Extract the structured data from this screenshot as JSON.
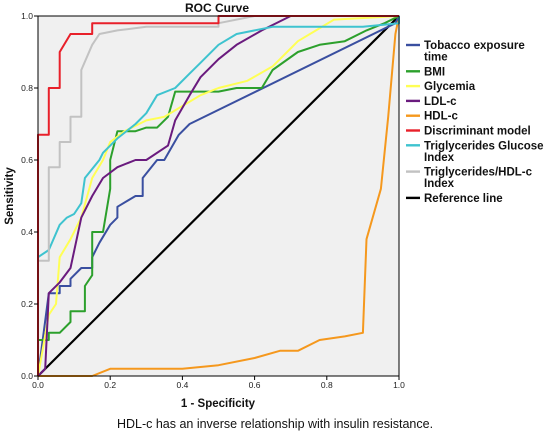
{
  "caption": "HDL-c has an inverse relationship with insulin resistance.",
  "chart_data": {
    "type": "line",
    "title": "ROC Curve",
    "xlabel": "1 - Specificity",
    "ylabel": "Sensitivity",
    "xlim": [
      0,
      1
    ],
    "ylim": [
      0,
      1
    ],
    "x_ticks": [
      "0.0",
      "0.2",
      "0.4",
      "0.6",
      "0.8",
      "1.0"
    ],
    "y_ticks": [
      "0.0",
      "0.2",
      "0.4",
      "0.6",
      "0.8",
      "1.0"
    ],
    "grid": false,
    "legend_position": "right",
    "background": "#f0f0f0",
    "series": [
      {
        "name": "Tobacco exposure time",
        "color": "#3a4fa0",
        "points": [
          [
            0,
            0
          ],
          [
            0.03,
            0.23
          ],
          [
            0.06,
            0.23
          ],
          [
            0.06,
            0.25
          ],
          [
            0.09,
            0.25
          ],
          [
            0.09,
            0.27
          ],
          [
            0.12,
            0.3
          ],
          [
            0.15,
            0.3
          ],
          [
            0.15,
            0.33
          ],
          [
            0.17,
            0.37
          ],
          [
            0.2,
            0.42
          ],
          [
            0.22,
            0.44
          ],
          [
            0.22,
            0.47
          ],
          [
            0.27,
            0.5
          ],
          [
            0.29,
            0.5
          ],
          [
            0.29,
            0.55
          ],
          [
            0.33,
            0.6
          ],
          [
            0.35,
            0.6
          ],
          [
            0.39,
            0.67
          ],
          [
            0.42,
            0.7
          ],
          [
            0.99,
            0.98
          ],
          [
            1,
            1
          ]
        ]
      },
      {
        "name": "BMI",
        "color": "#2ca02c",
        "points": [
          [
            0,
            0
          ],
          [
            0,
            0.1
          ],
          [
            0.03,
            0.1
          ],
          [
            0.03,
            0.12
          ],
          [
            0.06,
            0.12
          ],
          [
            0.09,
            0.15
          ],
          [
            0.09,
            0.18
          ],
          [
            0.13,
            0.18
          ],
          [
            0.13,
            0.25
          ],
          [
            0.15,
            0.28
          ],
          [
            0.15,
            0.4
          ],
          [
            0.18,
            0.4
          ],
          [
            0.2,
            0.52
          ],
          [
            0.2,
            0.6
          ],
          [
            0.22,
            0.68
          ],
          [
            0.27,
            0.68
          ],
          [
            0.3,
            0.69
          ],
          [
            0.33,
            0.69
          ],
          [
            0.36,
            0.72
          ],
          [
            0.38,
            0.79
          ],
          [
            0.44,
            0.79
          ],
          [
            0.5,
            0.79
          ],
          [
            0.55,
            0.8
          ],
          [
            0.62,
            0.8
          ],
          [
            0.65,
            0.85
          ],
          [
            0.72,
            0.9
          ],
          [
            0.78,
            0.92
          ],
          [
            0.85,
            0.93
          ],
          [
            0.91,
            0.96
          ],
          [
            0.96,
            0.98
          ],
          [
            1,
            1
          ]
        ]
      },
      {
        "name": "Glycemia",
        "color": "#ffff55",
        "points": [
          [
            0,
            0
          ],
          [
            0.03,
            0.17
          ],
          [
            0.05,
            0.2
          ],
          [
            0.06,
            0.33
          ],
          [
            0.09,
            0.38
          ],
          [
            0.12,
            0.44
          ],
          [
            0.15,
            0.55
          ],
          [
            0.18,
            0.6
          ],
          [
            0.2,
            0.65
          ],
          [
            0.24,
            0.68
          ],
          [
            0.3,
            0.71
          ],
          [
            0.35,
            0.72
          ],
          [
            0.4,
            0.75
          ],
          [
            0.45,
            0.78
          ],
          [
            0.5,
            0.8
          ],
          [
            0.58,
            0.82
          ],
          [
            0.65,
            0.86
          ],
          [
            0.69,
            0.9
          ],
          [
            0.72,
            0.93
          ],
          [
            0.77,
            0.96
          ],
          [
            0.82,
            0.99
          ],
          [
            1,
            1
          ]
        ]
      },
      {
        "name": "LDL-c",
        "color": "#6a1b7e",
        "points": [
          [
            0,
            0
          ],
          [
            0.02,
            0.02
          ],
          [
            0.03,
            0.23
          ],
          [
            0.06,
            0.26
          ],
          [
            0.09,
            0.3
          ],
          [
            0.12,
            0.44
          ],
          [
            0.15,
            0.5
          ],
          [
            0.18,
            0.55
          ],
          [
            0.22,
            0.58
          ],
          [
            0.27,
            0.6
          ],
          [
            0.3,
            0.6
          ],
          [
            0.36,
            0.64
          ],
          [
            0.38,
            0.71
          ],
          [
            0.42,
            0.78
          ],
          [
            0.45,
            0.83
          ],
          [
            0.5,
            0.88
          ],
          [
            0.55,
            0.92
          ],
          [
            0.62,
            0.96
          ],
          [
            0.7,
            1
          ],
          [
            1,
            1
          ]
        ]
      },
      {
        "name": "HDL-c",
        "color": "#f5981d",
        "points": [
          [
            0,
            0
          ],
          [
            0.05,
            0.0
          ],
          [
            0.15,
            0.0
          ],
          [
            0.2,
            0.02
          ],
          [
            0.3,
            0.02
          ],
          [
            0.4,
            0.02
          ],
          [
            0.5,
            0.03
          ],
          [
            0.6,
            0.05
          ],
          [
            0.67,
            0.07
          ],
          [
            0.72,
            0.07
          ],
          [
            0.78,
            0.1
          ],
          [
            0.85,
            0.11
          ],
          [
            0.9,
            0.12
          ],
          [
            0.91,
            0.38
          ],
          [
            0.95,
            0.52
          ],
          [
            0.97,
            0.72
          ],
          [
            0.99,
            0.95
          ],
          [
            1,
            1
          ]
        ]
      },
      {
        "name": "Discriminant model",
        "color": "#e8202a",
        "points": [
          [
            0,
            0
          ],
          [
            0,
            0.67
          ],
          [
            0.03,
            0.67
          ],
          [
            0.03,
            0.8
          ],
          [
            0.06,
            0.8
          ],
          [
            0.06,
            0.9
          ],
          [
            0.09,
            0.95
          ],
          [
            0.15,
            0.95
          ],
          [
            0.15,
            0.98
          ],
          [
            0.5,
            0.98
          ],
          [
            0.5,
            1
          ],
          [
            1,
            1
          ]
        ]
      },
      {
        "name": "Triglycerides Glucose Index",
        "color": "#3ec3cf",
        "points": [
          [
            0,
            0
          ],
          [
            0,
            0.33
          ],
          [
            0.03,
            0.35
          ],
          [
            0.06,
            0.42
          ],
          [
            0.08,
            0.44
          ],
          [
            0.1,
            0.45
          ],
          [
            0.12,
            0.48
          ],
          [
            0.13,
            0.55
          ],
          [
            0.17,
            0.6
          ],
          [
            0.18,
            0.62
          ],
          [
            0.22,
            0.66
          ],
          [
            0.27,
            0.7
          ],
          [
            0.3,
            0.73
          ],
          [
            0.33,
            0.78
          ],
          [
            0.38,
            0.8
          ],
          [
            0.42,
            0.84
          ],
          [
            0.45,
            0.87
          ],
          [
            0.5,
            0.92
          ],
          [
            0.55,
            0.95
          ],
          [
            0.65,
            0.97
          ],
          [
            0.9,
            0.97
          ],
          [
            1,
            0.98
          ],
          [
            1,
            1
          ]
        ]
      },
      {
        "name": "Triglycerides/HDL-c Index",
        "color": "#c2c2c2",
        "points": [
          [
            0,
            0
          ],
          [
            0,
            0.32
          ],
          [
            0.03,
            0.32
          ],
          [
            0.03,
            0.58
          ],
          [
            0.06,
            0.58
          ],
          [
            0.06,
            0.65
          ],
          [
            0.09,
            0.65
          ],
          [
            0.09,
            0.72
          ],
          [
            0.12,
            0.72
          ],
          [
            0.12,
            0.85
          ],
          [
            0.15,
            0.92
          ],
          [
            0.17,
            0.95
          ],
          [
            0.22,
            0.96
          ],
          [
            0.3,
            0.97
          ],
          [
            0.5,
            0.97
          ],
          [
            0.5,
            0.98
          ],
          [
            0.6,
            1
          ],
          [
            1,
            1
          ]
        ]
      },
      {
        "name": "Reference line",
        "color": "#000000",
        "points": [
          [
            0,
            0
          ],
          [
            1,
            1
          ]
        ]
      }
    ]
  }
}
